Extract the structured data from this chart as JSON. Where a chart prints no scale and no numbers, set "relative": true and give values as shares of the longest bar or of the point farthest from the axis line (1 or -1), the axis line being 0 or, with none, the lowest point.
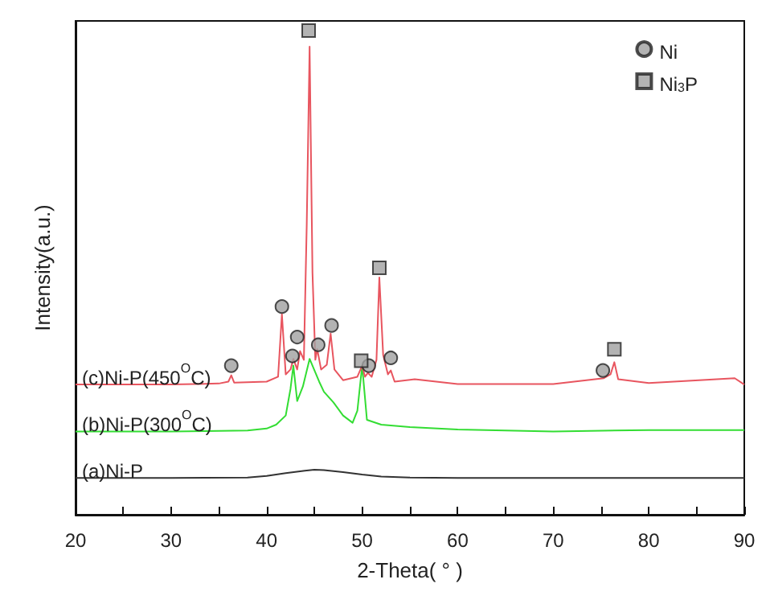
{
  "chart_data": {
    "type": "line",
    "relative": true,
    "xlabel": "2-Theta( ° )",
    "ylabel": "Intensity(a.u.)",
    "xlim": [
      20,
      90
    ],
    "xticks": [
      20,
      30,
      40,
      50,
      60,
      70,
      80,
      90
    ],
    "grid": false,
    "legend": "top right",
    "series": [
      {
        "name": "(a)Ni-P",
        "color": "#333333",
        "x": [
          20,
          30,
          38,
          40,
          42,
          44,
          45,
          46,
          48,
          50,
          52,
          55,
          60,
          70,
          80,
          90
        ],
        "values": [
          0.076,
          0.076,
          0.077,
          0.08,
          0.086,
          0.091,
          0.093,
          0.092,
          0.088,
          0.083,
          0.079,
          0.077,
          0.076,
          0.076,
          0.076,
          0.076
        ]
      },
      {
        "name": "(b)Ni-P(300$^{O}$C)",
        "color": "#33dd33",
        "x": [
          20,
          30,
          38,
          40,
          41,
          42,
          42.5,
          42.8,
          43.2,
          43.8,
          44.5,
          45.5,
          46,
          47,
          48,
          49,
          49.5,
          50,
          50.5,
          52,
          55,
          60,
          70,
          80,
          90
        ],
        "values": [
          0.172,
          0.172,
          0.174,
          0.178,
          0.186,
          0.205,
          0.26,
          0.308,
          0.235,
          0.265,
          0.322,
          0.275,
          0.254,
          0.232,
          0.205,
          0.19,
          0.215,
          0.308,
          0.196,
          0.186,
          0.181,
          0.176,
          0.172,
          0.175,
          0.175
        ]
      },
      {
        "name": "(c)Ni-P(450$^{O}$C)",
        "color": "#e8555f",
        "x": [
          20,
          30,
          35,
          36,
          36.3,
          36.6,
          40,
          41.2,
          41.6,
          42,
          42.5,
          42.8,
          43.2,
          43.5,
          43.9,
          44.2,
          44.5,
          44.8,
          45.1,
          45.3,
          45.7,
          46.3,
          46.7,
          47.1,
          48,
          49.5,
          50,
          50.3,
          50.6,
          51,
          51.5,
          51.8,
          52.2,
          52.7,
          53,
          53.4,
          55.5,
          60,
          70,
          75.3,
          76,
          76.4,
          76.8,
          80,
          89,
          90
        ],
        "values": [
          0.269,
          0.269,
          0.271,
          0.275,
          0.288,
          0.273,
          0.275,
          0.285,
          0.414,
          0.29,
          0.3,
          0.322,
          0.3,
          0.338,
          0.32,
          0.6,
          0.967,
          0.5,
          0.32,
          0.342,
          0.3,
          0.31,
          0.374,
          0.3,
          0.278,
          0.285,
          0.308,
          0.285,
          0.293,
          0.285,
          0.32,
          0.49,
          0.33,
          0.29,
          0.298,
          0.275,
          0.28,
          0.27,
          0.27,
          0.282,
          0.29,
          0.315,
          0.28,
          0.272,
          0.282,
          0.269
        ]
      },
      {
        "name": "Ni",
        "type": "scatter",
        "marker": "circle",
        "color": "#a0a0a0",
        "x": [
          36.3,
          41.6,
          42.7,
          43.2,
          45.4,
          46.8,
          50.7,
          53.0,
          75.2
        ],
        "values": [
          0.308,
          0.43,
          0.328,
          0.367,
          0.351,
          0.391,
          0.308,
          0.324,
          0.298
        ]
      },
      {
        "name": "Ni$_{3}$P",
        "type": "scatter",
        "marker": "square",
        "color": "#a0a0a0",
        "x": [
          44.4,
          49.9,
          51.8,
          76.4
        ],
        "values": [
          1.0,
          0.318,
          0.51,
          0.342
        ]
      }
    ]
  }
}
